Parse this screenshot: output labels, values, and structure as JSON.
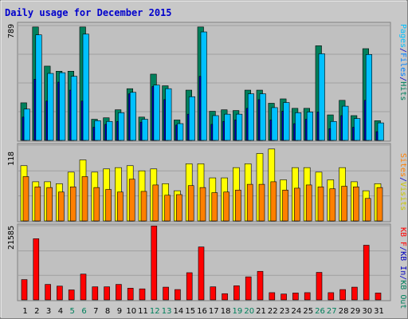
{
  "title": "Daily usage for December 2015",
  "colors": {
    "background": "#c8c8c8",
    "plot_bg": "#c0c0c0",
    "title": "#0000cc",
    "hits": "#00805c",
    "files": "#0080ff",
    "pages": "#00c0ff",
    "kb_out": "#0000c0",
    "visits": "#ffff00",
    "sites": "#ff8000",
    "kb_in": "#ff0000",
    "weekend": "#00805c",
    "weekday": "#000000",
    "separator": "#0000cc"
  },
  "chart_data": [
    {
      "type": "bar",
      "panel": "top",
      "max_label": "789",
      "ylim": [
        0,
        789
      ],
      "right_labels": [
        "Pages",
        "Files",
        "Hits"
      ],
      "categories": [
        "1",
        "2",
        "3",
        "4",
        "5",
        "6",
        "7",
        "8",
        "9",
        "10",
        "11",
        "12",
        "13",
        "14",
        "15",
        "16",
        "17",
        "18",
        "19",
        "20",
        "21",
        "22",
        "23",
        "24",
        "25",
        "26",
        "27",
        "28",
        "29",
        "30",
        "31"
      ],
      "weekend_days": [
        5,
        6,
        12,
        13,
        19,
        20,
        26,
        27
      ],
      "series": [
        {
          "name": "Hits",
          "values": [
            258,
            779,
            510,
            475,
            475,
            779,
            145,
            155,
            210,
            355,
            160,
            455,
            375,
            140,
            345,
            779,
            200,
            210,
            205,
            345,
            345,
            255,
            285,
            220,
            220,
            650,
            175,
            275,
            170,
            630,
            135
          ]
        },
        {
          "name": "Files",
          "values": [
            215,
            725,
            460,
            465,
            440,
            730,
            135,
            130,
            190,
            330,
            145,
            380,
            355,
            115,
            300,
            745,
            170,
            180,
            180,
            320,
            320,
            225,
            260,
            190,
            195,
            595,
            130,
            235,
            150,
            590,
            120
          ]
        },
        {
          "name": "Pages",
          "values": [
            215,
            725,
            460,
            465,
            440,
            730,
            135,
            130,
            190,
            330,
            145,
            380,
            355,
            115,
            300,
            745,
            170,
            180,
            180,
            320,
            320,
            225,
            260,
            190,
            195,
            595,
            130,
            235,
            150,
            590,
            120
          ]
        },
        {
          "name": "KB Out",
          "values": [
            160,
            420,
            270,
            400,
            345,
            270,
            90,
            110,
            130,
            320,
            125,
            370,
            280,
            105,
            180,
            440,
            110,
            130,
            140,
            220,
            280,
            140,
            200,
            115,
            145,
            195,
            80,
            170,
            90,
            275,
            60
          ]
        }
      ]
    },
    {
      "type": "bar",
      "panel": "middle",
      "max_label": "118",
      "ylim": [
        0,
        118
      ],
      "right_labels": [
        "Visits",
        "Sites"
      ],
      "series": [
        {
          "name": "Visits",
          "values": [
            86,
            61,
            61,
            58,
            76,
            95,
            76,
            81,
            83,
            86,
            78,
            81,
            58,
            47,
            89,
            89,
            67,
            67,
            83,
            89,
            105,
            112,
            64,
            83,
            83,
            76,
            64,
            83,
            61,
            47,
            58
          ]
        },
        {
          "name": "Sites",
          "values": [
            69,
            53,
            52,
            45,
            53,
            69,
            52,
            49,
            45,
            65,
            46,
            56,
            40,
            41,
            55,
            52,
            44,
            45,
            48,
            57,
            57,
            61,
            48,
            51,
            56,
            53,
            50,
            54,
            53,
            35,
            52
          ]
        }
      ]
    },
    {
      "type": "bar",
      "panel": "bottom",
      "max_label": "21585",
      "ylim": [
        0,
        21585
      ],
      "right_labels": [
        "KB F",
        "KB In",
        "KB Out"
      ],
      "series": [
        {
          "name": "KB In",
          "values": [
            5900,
            17800,
            4500,
            4000,
            2900,
            7500,
            3800,
            3800,
            4500,
            3400,
            3200,
            21500,
            3700,
            3000,
            7900,
            15400,
            3800,
            1800,
            4100,
            6700,
            8300,
            2100,
            1700,
            2000,
            2100,
            8000,
            2100,
            3000,
            3700,
            15900,
            2000
          ]
        }
      ]
    }
  ]
}
